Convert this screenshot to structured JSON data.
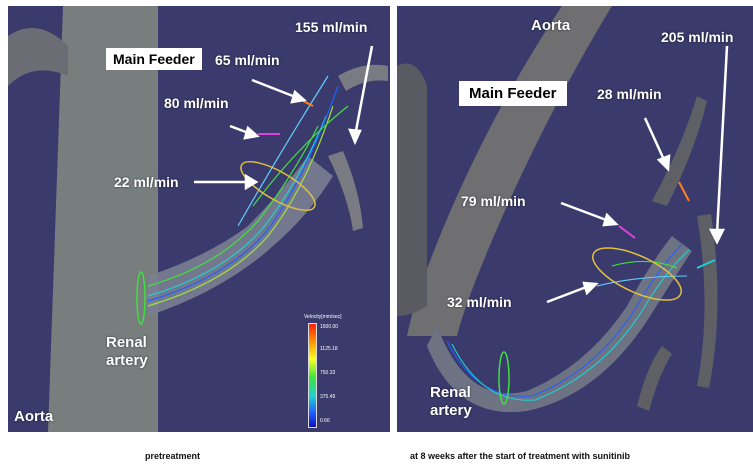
{
  "left_panel": {
    "labels": {
      "flow_155": "155 ml/min",
      "main_feeder": "Main Feeder",
      "flow_65": "65 ml/min",
      "flow_80": "80 ml/min",
      "flow_22": "22 ml/min",
      "renal_artery": "Renal\nartery",
      "aorta": "Aorta"
    },
    "colorbar": {
      "title": "Velocity[mm/sec]",
      "ticks": [
        "1500.00",
        "1125.18",
        "750.33",
        "375.49",
        "0.66"
      ]
    }
  },
  "right_panel": {
    "labels": {
      "aorta": "Aorta",
      "flow_205": "205 ml/min",
      "main_feeder": "Main Feeder",
      "flow_28": "28 ml/min",
      "flow_79": "79 ml/min",
      "flow_32": "32 ml/min",
      "renal_artery": "Renal\nartery"
    }
  },
  "captions": {
    "left": "pretreatment",
    "right": "at 8 weeks after the start of treatment with sunitinib"
  },
  "colors": {
    "background": "#3a3a6c",
    "vessel": "#8a8a8a",
    "flow_high": "#ff2010",
    "flow_mid": "#40e040",
    "flow_low": "#2060ff",
    "plane_outline": "#e0c040"
  }
}
